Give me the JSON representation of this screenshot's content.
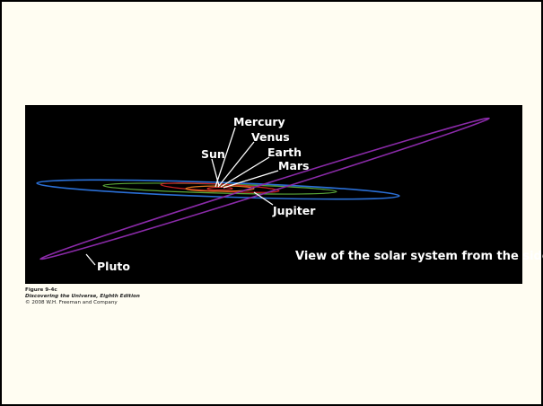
{
  "figure": {
    "labels": {
      "mercury": "Mercury",
      "venus": "Venus",
      "earth": "Earth",
      "mars": "Mars",
      "sun": "Sun",
      "jupiter": "Jupiter",
      "pluto": "Pluto"
    },
    "description": "View of the solar system from the side"
  },
  "caption": {
    "figure_number": "Figure 9-4c",
    "book": "Discovering the Universe, Eighth Edition",
    "copyright": "© 2008 W.H. Freeman and Company"
  }
}
